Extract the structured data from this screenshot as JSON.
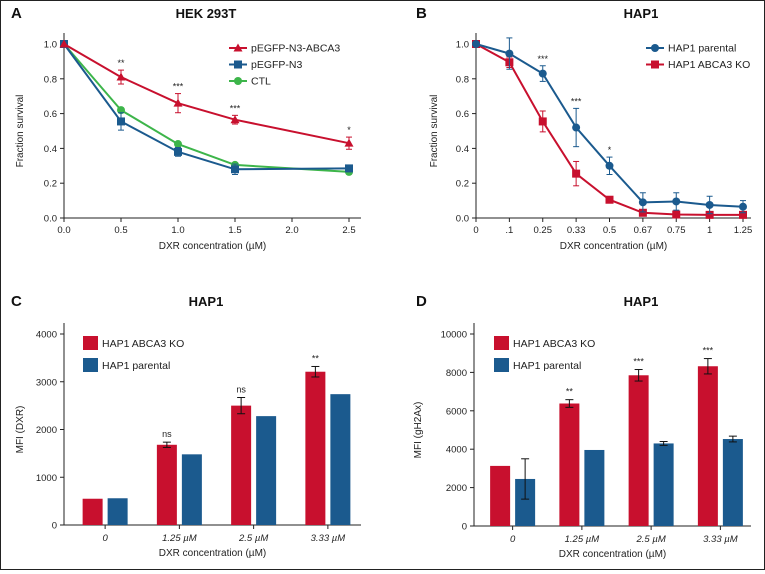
{
  "colors": {
    "red": "#c8102e",
    "blue": "#1b5a8e",
    "green": "#3db54a",
    "axis": "#222222"
  },
  "chart_data": [
    {
      "panel": "A",
      "type": "line",
      "title": "HEK 293T",
      "xlabel": "DXR concentration (µM)",
      "ylabel": "Fraction survival",
      "xlim": [
        0,
        2.5
      ],
      "ylim": [
        0,
        1.0
      ],
      "xticks": [
        "0.0",
        "0.5",
        "1.0",
        "1.5",
        "2.0",
        "2.5"
      ],
      "yticks": [
        "0.0",
        "0.2",
        "0.4",
        "0.6",
        "0.8",
        "1.0"
      ],
      "x": [
        0,
        0.5,
        1.0,
        1.5,
        2.5
      ],
      "legend": "top-right",
      "series": [
        {
          "name": "pEGFP-N3-ABCA3",
          "color": "red",
          "marker": "triangle",
          "values": [
            1.0,
            0.81,
            0.66,
            0.565,
            0.43
          ],
          "errors": [
            0,
            0.04,
            0.055,
            0.025,
            0.035
          ]
        },
        {
          "name": "pEGFP-N3",
          "color": "blue",
          "marker": "square",
          "values": [
            1.0,
            0.555,
            0.38,
            0.28,
            0.285
          ],
          "errors": [
            0,
            0.05,
            0.025,
            0.03,
            0.015
          ]
        },
        {
          "name": "CTL",
          "color": "green",
          "marker": "circle",
          "values": [
            1.0,
            0.62,
            0.425,
            0.305,
            0.265
          ],
          "errors": [
            0,
            0,
            0,
            0,
            0
          ]
        }
      ],
      "significance": [
        "",
        "**",
        "***",
        "***",
        "*"
      ]
    },
    {
      "panel": "B",
      "type": "line",
      "title": "HAP1",
      "xlabel": "DXR concentration (µM)",
      "ylabel": "Fraction survival",
      "ylim": [
        0,
        1.0
      ],
      "categories": [
        "0",
        ".1",
        "0.25",
        "0.33",
        "0.5",
        "0.67",
        "0.75",
        "1",
        "1.25"
      ],
      "yticks": [
        "0.0",
        "0.2",
        "0.4",
        "0.6",
        "0.8",
        "1.0"
      ],
      "legend": "top-right",
      "series": [
        {
          "name": "HAP1 parental",
          "color": "blue",
          "marker": "circle",
          "values": [
            1.0,
            0.945,
            0.83,
            0.52,
            0.3,
            0.09,
            0.095,
            0.075,
            0.065
          ],
          "errors": [
            0,
            0.09,
            0.045,
            0.11,
            0.05,
            0.055,
            0.05,
            0.05,
            0.035
          ]
        },
        {
          "name": "HAP1 ABCA3 KO",
          "color": "red",
          "marker": "square",
          "values": [
            1.0,
            0.895,
            0.555,
            0.255,
            0.105,
            0.03,
            0.02,
            0.018,
            0.018
          ],
          "errors": [
            0,
            0.03,
            0.06,
            0.07,
            0,
            0,
            0,
            0,
            0
          ]
        }
      ],
      "significance": [
        "",
        "",
        "***",
        "***",
        "*",
        "",
        "",
        "",
        ""
      ]
    },
    {
      "panel": "C",
      "type": "bar",
      "title": "HAP1",
      "xlabel": "DXR concentration (µM)",
      "ylabel": "MFI (DXR)",
      "ylim": [
        0,
        4000
      ],
      "yticks": [
        "0",
        "1000",
        "2000",
        "3000",
        "4000"
      ],
      "categories": [
        "0",
        "1.25 µM",
        "2.5 µM",
        "3.33 µM"
      ],
      "legend": "top-left",
      "series": [
        {
          "name": "HAP1 ABCA3 KO",
          "color": "red",
          "values": [
            550,
            1680,
            2500,
            3210
          ],
          "errors": [
            0,
            55,
            170,
            110
          ]
        },
        {
          "name": "HAP1 parental",
          "color": "blue",
          "values": [
            560,
            1480,
            2280,
            2740
          ],
          "errors": [
            0,
            0,
            0,
            0
          ]
        }
      ],
      "significance": [
        "",
        "ns",
        "ns",
        "**"
      ]
    },
    {
      "panel": "D",
      "type": "bar",
      "title": "HAP1",
      "xlabel": "DXR concentration (µM)",
      "ylabel": "MFI (gH2Ax)",
      "ylim": [
        0,
        10000
      ],
      "yticks": [
        "0",
        "2000",
        "4000",
        "6000",
        "8000",
        "10000"
      ],
      "categories": [
        "0",
        "1.25 µM",
        "2.5 µM",
        "3.33 µM"
      ],
      "legend": "top-left",
      "series": [
        {
          "name": "HAP1 ABCA3 KO",
          "color": "red",
          "values": [
            3130,
            6380,
            7850,
            8320
          ],
          "errors": [
            0,
            200,
            300,
            400
          ]
        },
        {
          "name": "HAP1 parental",
          "color": "blue",
          "values": [
            2450,
            3960,
            4300,
            4530
          ],
          "errors": [
            1050,
            0,
            100,
            150
          ]
        }
      ],
      "significance": [
        "",
        "**",
        "***",
        "***"
      ]
    }
  ]
}
